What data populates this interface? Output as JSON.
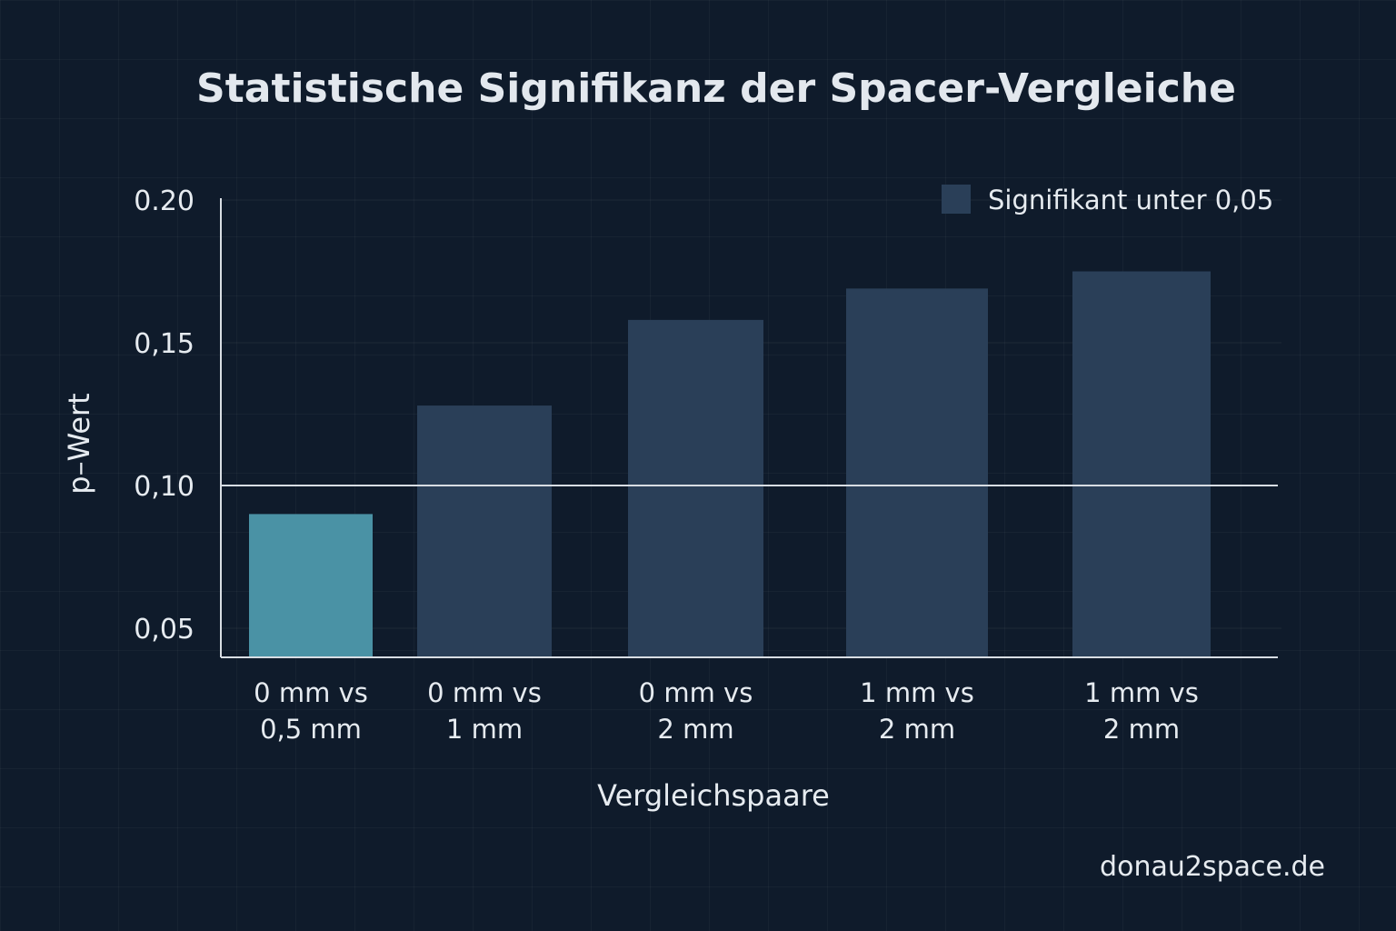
{
  "chart_data": {
    "type": "bar",
    "title": "Statistische Signifikanz der Spacer-Vergleiche",
    "xlabel": "Vergleichspaare",
    "ylabel": "p–Wert",
    "ylim": [
      0.04,
      0.2
    ],
    "yticks": [
      0.05,
      0.1,
      0.15,
      0.2
    ],
    "ytick_labels": [
      "0,05",
      "0,10",
      "0,15",
      "0.20"
    ],
    "categories": [
      [
        "0 mm vs",
        "0,5 mm"
      ],
      [
        "0 mm vs",
        "1 mm"
      ],
      [
        "0 mm vs",
        "2 mm"
      ],
      [
        "1 mm vs",
        "2 mm"
      ],
      [
        "1 mm vs",
        "2 mm"
      ]
    ],
    "values": [
      0.09,
      0.128,
      0.158,
      0.169,
      0.175
    ],
    "highlighted": [
      true,
      false,
      false,
      false,
      false
    ],
    "reference_line": 0.1,
    "legend": {
      "label": "Signifikant unter 0,05",
      "position": "top-right"
    },
    "grid": true,
    "colors": {
      "bar": "#2a3f58",
      "highlight": "#4a92a5",
      "background": "#0f1b2b",
      "axis": "#d8dde3"
    }
  },
  "footer": {
    "source": "donau2space.de"
  }
}
